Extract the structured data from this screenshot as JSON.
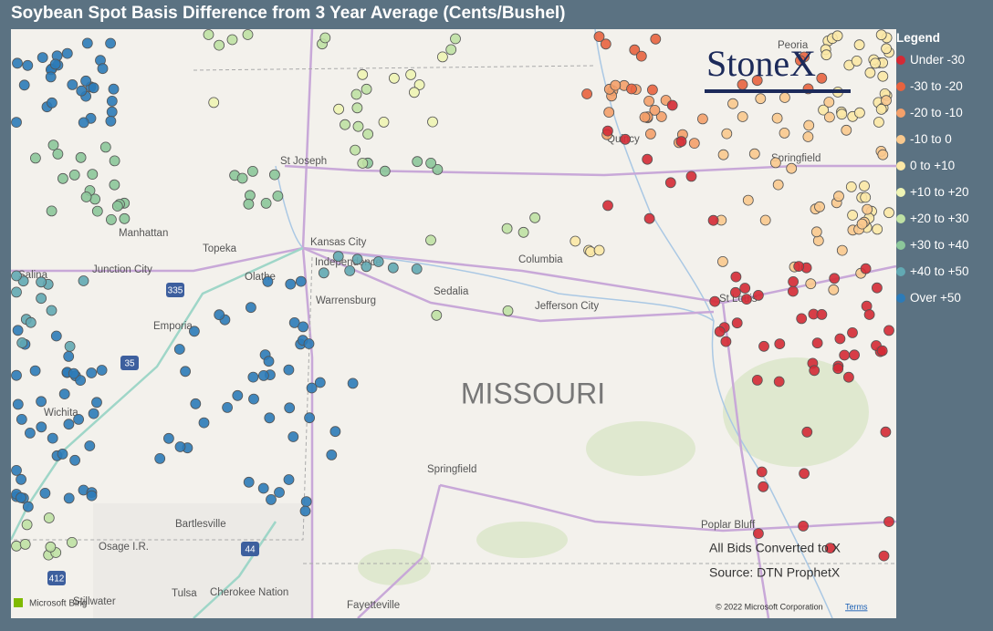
{
  "header": {
    "title": "Soybean Spot Basis Difference from 3 Year Average (Cents/Bushel)"
  },
  "legend": {
    "title": "Legend",
    "items": [
      {
        "label": "Under -30",
        "color": "#d42a35"
      },
      {
        "label": "-30 to -20",
        "color": "#e8633f"
      },
      {
        "label": "-20 to -10",
        "color": "#f4a06a"
      },
      {
        "label": "-10 to 0",
        "color": "#f9c98e"
      },
      {
        "label": "0 to +10",
        "color": "#fbe8a6"
      },
      {
        "label": "+10 to +20",
        "color": "#eef4b4"
      },
      {
        "label": "+20 to +30",
        "color": "#bfe1a4"
      },
      {
        "label": "+30 to +40",
        "color": "#8cc79a"
      },
      {
        "label": "+40 to +50",
        "color": "#62a9b3"
      },
      {
        "label": "Over +50",
        "color": "#2c7bb8"
      }
    ]
  },
  "logo": "StoneX",
  "map": {
    "region_label": "MISSOURI",
    "places": [
      "St Joseph",
      "Manhattan",
      "Topeka",
      "Kansas City",
      "Independence",
      "Junction City",
      "Salina",
      "Olathe",
      "Emporia",
      "Warrensburg",
      "Sedalia",
      "Columbia",
      "Jefferson City",
      "Quincy",
      "Springfield",
      "St Louis",
      "Wichita",
      "Springfield",
      "Poplar Bluff",
      "Bartlesville",
      "Osage I.R.",
      "Tulsa",
      "Cherokee Nation",
      "Stillwater",
      "Fayetteville",
      "Peoria"
    ],
    "highways": [
      "35",
      "335",
      "44",
      "412"
    ],
    "provider": "Microsoft Bing",
    "attribution": "© 2022 Microsoft Corporation",
    "terms": "Terms"
  },
  "notes": [
    "All Bids Converted to X",
    "Source: DTN ProphetX"
  ]
}
